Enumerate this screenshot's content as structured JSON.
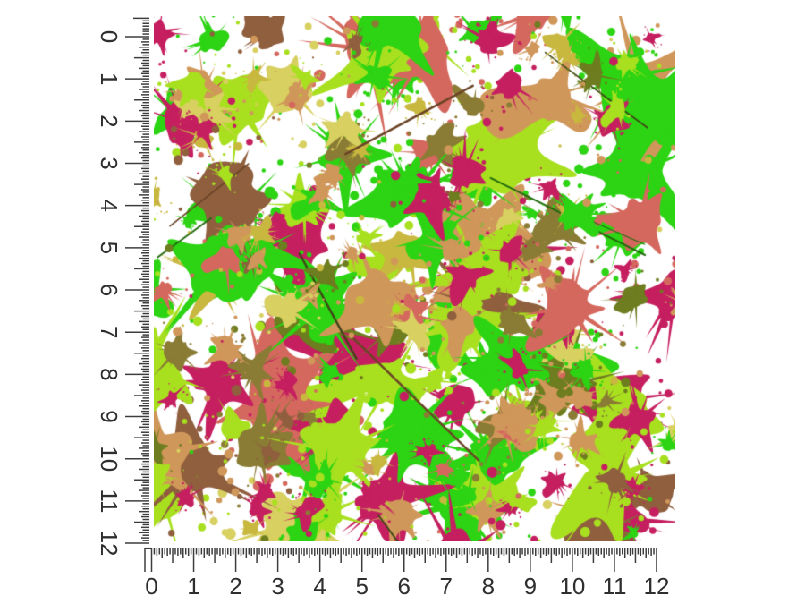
{
  "image": {
    "kind": "pattern-swatch-with-rulers",
    "description": "Paint splatter patterned 12 inch square swatch measured by a vertical ruler on the left and a horizontal ruler on the bottom"
  },
  "rulers": {
    "unit": "inch",
    "subdivisions_per_unit": 16,
    "numbers": [
      "0",
      "1",
      "2",
      "3",
      "4",
      "5",
      "6",
      "7",
      "8",
      "9",
      "10",
      "11",
      "12"
    ],
    "tick_color": "#3d3d3d",
    "number_color": "#2e2e2e"
  },
  "swatch": {
    "background": "#ffffff",
    "palette": [
      {
        "name": "camel",
        "hex": "#d0975a",
        "weight": 0.13
      },
      {
        "name": "salmon",
        "hex": "#d5685e",
        "weight": 0.1
      },
      {
        "name": "magenta",
        "hex": "#c51f60",
        "weight": 0.15
      },
      {
        "name": "neon-green",
        "hex": "#2cd413",
        "weight": 0.17
      },
      {
        "name": "chartreuse",
        "hex": "#a8e01f",
        "weight": 0.15
      },
      {
        "name": "gold",
        "hex": "#c9b83f",
        "weight": 0.1
      },
      {
        "name": "olive",
        "hex": "#8a7c35",
        "weight": 0.06
      },
      {
        "name": "moss",
        "hex": "#6d7d1f",
        "weight": 0.04
      },
      {
        "name": "brown",
        "hex": "#8f5f3e",
        "weight": 0.04
      },
      {
        "name": "pale-yellow",
        "hex": "#d8d060",
        "weight": 0.06
      }
    ],
    "streak_colors": [
      "#3f4617",
      "#6b4426",
      "#246b10"
    ]
  }
}
